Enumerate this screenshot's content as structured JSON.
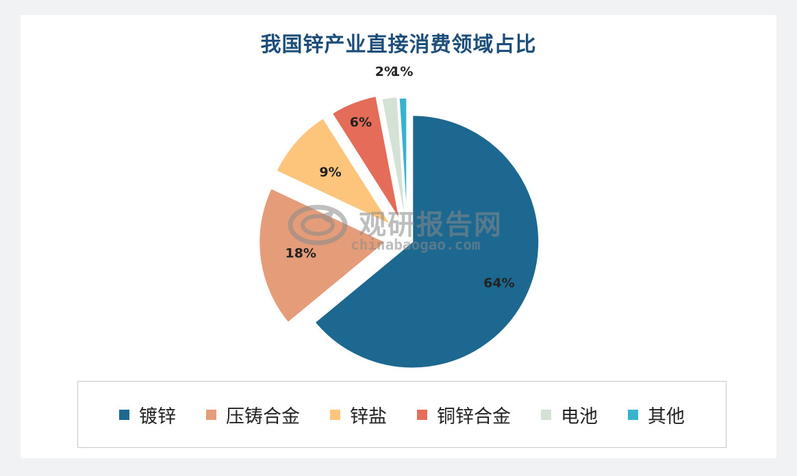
{
  "chart_data": {
    "type": "pie",
    "title": "我国锌产业直接消费领域占比",
    "categories": [
      "镀锌",
      "压铸合金",
      "锌盐",
      "铜锌合金",
      "电池",
      "其他"
    ],
    "values": [
      64,
      18,
      9,
      6,
      2,
      1
    ],
    "data_labels": [
      "64%",
      "18%",
      "9%",
      "6%",
      "2%",
      "1%"
    ],
    "colors": [
      "#1c6891",
      "#e59d79",
      "#fdc57c",
      "#e46c59",
      "#d4e2d6",
      "#38b3cc"
    ],
    "exploded": true,
    "legend_position": "bottom"
  },
  "watermark": {
    "cn": "观研报告网",
    "en": "chinabaogao.com"
  }
}
